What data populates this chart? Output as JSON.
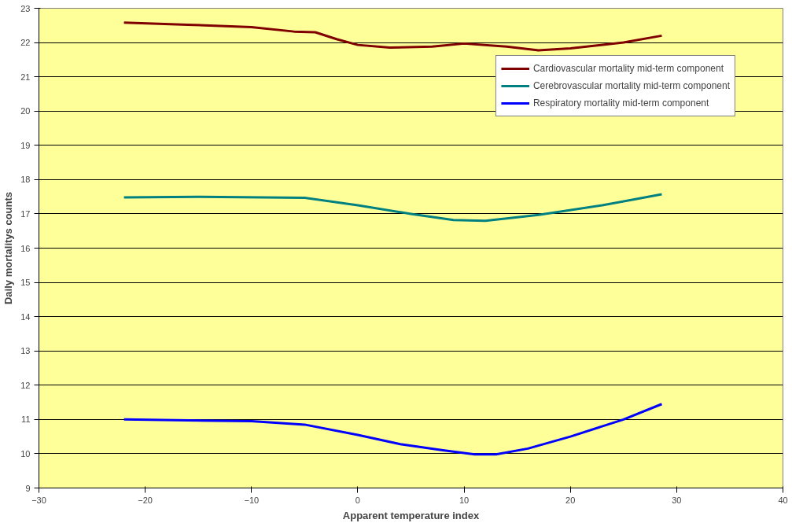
{
  "chart_data": {
    "type": "line",
    "xlabel": "Apparent temperature index",
    "ylabel": "Daily mortalitys counts",
    "xlim": [
      -30,
      40
    ],
    "xticks": [
      -30,
      -20,
      -10,
      0,
      10,
      20,
      30,
      40
    ],
    "ylim": [
      9,
      23
    ],
    "yticks": [
      9,
      10,
      11,
      12,
      13,
      14,
      15,
      16,
      17,
      18,
      19,
      20,
      21,
      22,
      23
    ],
    "grid": "y",
    "legend": "top right",
    "marker": "none",
    "line_style": "solid",
    "series": [
      {
        "name": "Cardiovascular mortality mid-term component",
        "color": "#800000",
        "x": [
          -22,
          -16,
          -10,
          -6,
          -4,
          -2,
          0,
          3,
          7,
          10,
          14,
          17,
          20,
          25,
          28.6
        ],
        "values": [
          22.58,
          22.52,
          22.45,
          22.32,
          22.3,
          22.1,
          21.93,
          21.85,
          21.88,
          21.97,
          21.88,
          21.77,
          21.83,
          22.0,
          22.2
        ]
      },
      {
        "name": "Cerebrovascular mortality mid-term component",
        "color": "#008080",
        "x": [
          -22,
          -15,
          -5,
          0,
          5,
          9,
          12,
          17,
          23,
          28.6
        ],
        "values": [
          17.48,
          17.5,
          17.47,
          17.25,
          17.0,
          16.82,
          16.8,
          16.97,
          17.25,
          17.57
        ]
      },
      {
        "name": "Respiratory mortality mid-term component",
        "color": "#0000FF",
        "x": [
          -22,
          -10,
          -5,
          0,
          4,
          8,
          11,
          13,
          16,
          20,
          25,
          28.6
        ],
        "values": [
          11.0,
          10.95,
          10.85,
          10.55,
          10.28,
          10.1,
          9.98,
          9.98,
          10.15,
          10.5,
          11.0,
          11.45
        ]
      }
    ]
  }
}
